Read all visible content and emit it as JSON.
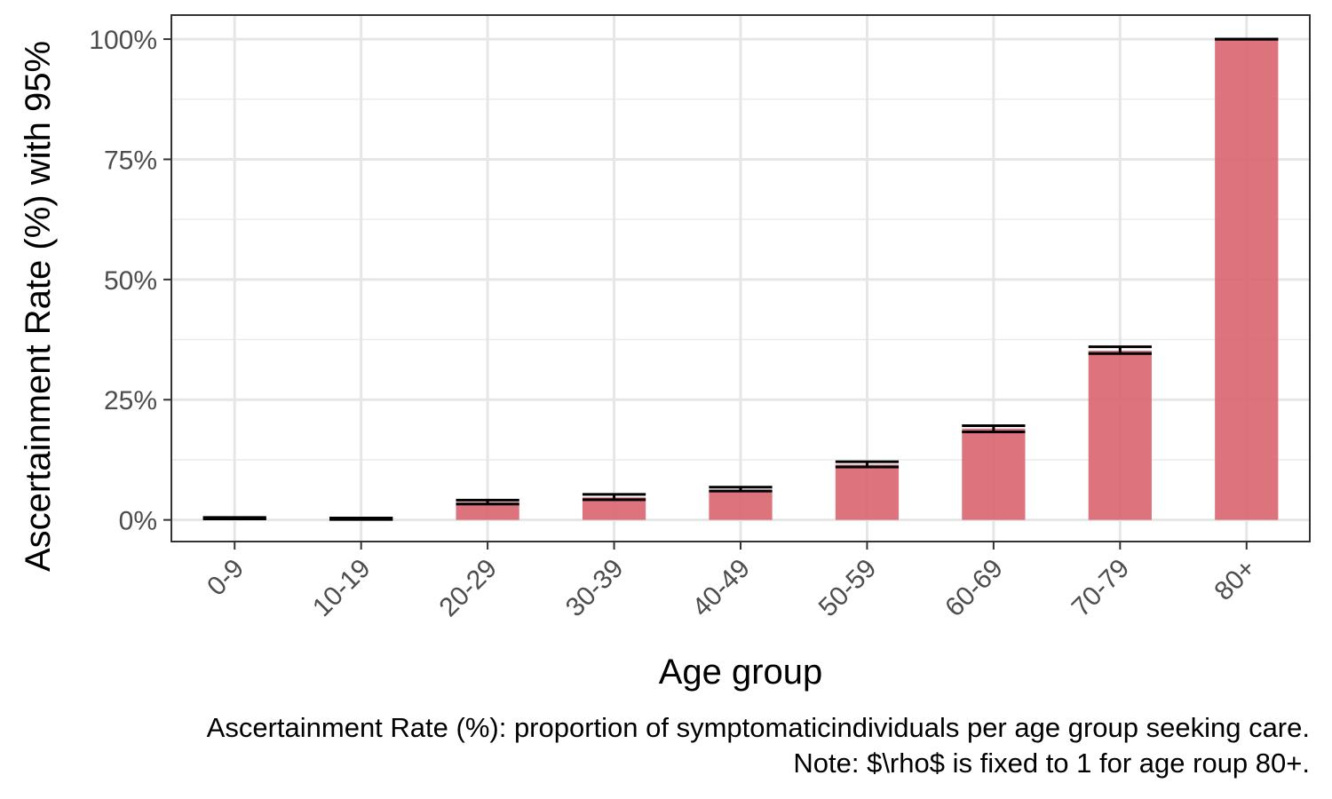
{
  "chart_data": {
    "type": "bar",
    "categories": [
      "0-9",
      "10-19",
      "20-29",
      "30-39",
      "40-49",
      "50-59",
      "60-69",
      "70-79",
      "80+"
    ],
    "values": [
      0.3,
      0.2,
      3.7,
      4.7,
      6.3,
      11.5,
      19.0,
      35.2,
      100.0
    ],
    "error_bars": {
      "lower": [
        0.2,
        0.1,
        3.3,
        4.2,
        6.0,
        11.0,
        18.3,
        34.6,
        100.0
      ],
      "upper": [
        0.5,
        0.4,
        4.1,
        5.3,
        6.8,
        12.1,
        19.6,
        36.0,
        100.0
      ]
    },
    "xlabel": "Age group",
    "ylabel": "Ascertainment Rate (%) with 95%",
    "ylim": [
      -4.5,
      105
    ],
    "yticks": [
      0,
      25,
      50,
      75,
      100
    ],
    "ytick_labels": [
      "0%",
      "25%",
      "50%",
      "75%",
      "100%"
    ],
    "grid": true,
    "bar_color": "#d9646e",
    "errorbar_color": "#000000",
    "caption": [
      "Ascertainment Rate (%): proportion of symptomaticindividuals per age group seeking care.",
      "Note: $\\rho$ is fixed to 1 for age roup 80+."
    ]
  }
}
